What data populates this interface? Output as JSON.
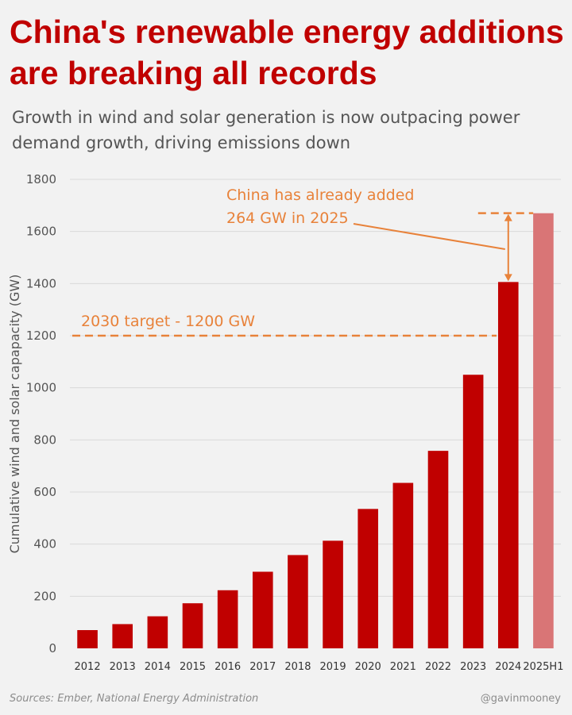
{
  "header": {
    "title": "China's renewable energy additions are breaking all records",
    "subtitle": "Growth in wind and solar generation is now outpacing power demand growth, driving emissions down"
  },
  "footer": {
    "source": "Sources: Ember, National Energy Administration",
    "handle": "@gavinmooney"
  },
  "colors": {
    "title": "#c00000",
    "bar": "#c00000",
    "bar_projected": "#d97576",
    "annotation": "#e8823a",
    "grid": "#d9d9d9",
    "text": "#555555"
  },
  "chart_data": {
    "type": "bar",
    "categories": [
      "2012",
      "2013",
      "2014",
      "2015",
      "2016",
      "2017",
      "2018",
      "2019",
      "2020",
      "2021",
      "2022",
      "2023",
      "2024",
      "2025H1"
    ],
    "values": [
      70,
      93,
      123,
      173,
      223,
      294,
      358,
      413,
      535,
      635,
      758,
      1050,
      1406,
      1670
    ],
    "highlighted_category": "2025H1",
    "ylabel": "Cumulative wind and solar capapacity (GW)",
    "ylim": [
      0,
      1800
    ],
    "yticks": [
      0,
      200,
      400,
      600,
      800,
      1000,
      1200,
      1400,
      1600,
      1800
    ],
    "grid": true,
    "annotations": {
      "target_label": "2030 target - 1200 GW",
      "target_value": 1200,
      "added_label_line1": "China has already added",
      "added_label_line2": "264 GW in 2025"
    }
  }
}
